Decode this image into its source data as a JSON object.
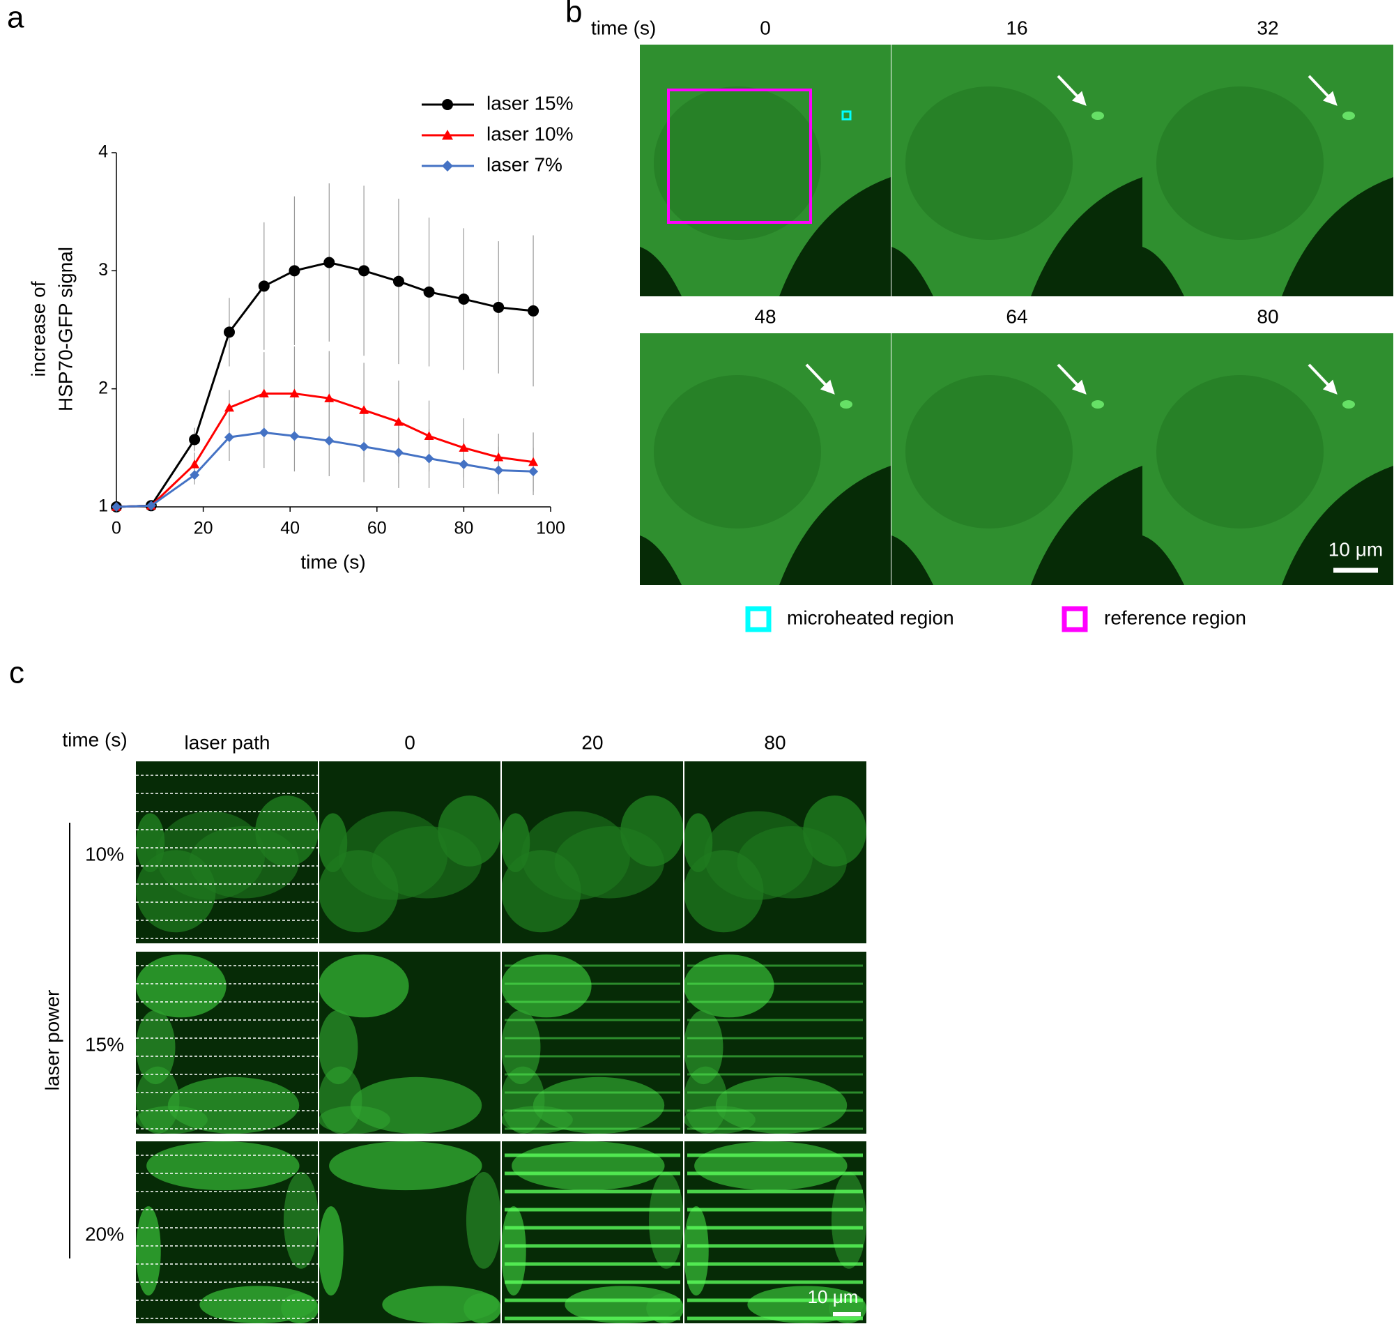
{
  "panel_labels": [
    "a",
    "b",
    "c"
  ],
  "chart_data": {
    "type": "line",
    "y_label": [
      "increase of",
      "HSP70-GFP signal"
    ],
    "x_label": "time (s)",
    "x": [
      0,
      8,
      18,
      26,
      34,
      41,
      49,
      57,
      65,
      72,
      80,
      88,
      96
    ],
    "series": [
      {
        "name": "laser 15%",
        "color": "#000000",
        "marker": "circle",
        "values": [
          1,
          1.01,
          1.57,
          2.48,
          2.87,
          3.0,
          3.07,
          3.0,
          2.91,
          2.82,
          2.76,
          2.69,
          2.66
        ],
        "errors": [
          0,
          0.01,
          0.1,
          0.29,
          0.54,
          0.63,
          0.67,
          0.72,
          0.7,
          0.63,
          0.6,
          0.56,
          0.64
        ]
      },
      {
        "name": "laser 10%",
        "color": "#ff0000",
        "marker": "triangle",
        "values": [
          1,
          1.01,
          1.36,
          1.84,
          1.96,
          1.96,
          1.92,
          1.82,
          1.72,
          1.6,
          1.5,
          1.42,
          1.38
        ],
        "errors": [
          0,
          0.01,
          0.1,
          0.15,
          0.35,
          0.4,
          0.4,
          0.4,
          0.35,
          0.3,
          0.25,
          0.2,
          0.25
        ]
      },
      {
        "name": "laser 7%",
        "color": "#4472c4",
        "marker": "diamond",
        "values": [
          1,
          1.01,
          1.27,
          1.59,
          1.63,
          1.6,
          1.56,
          1.51,
          1.46,
          1.41,
          1.36,
          1.31,
          1.3
        ],
        "errors": [
          0,
          0.01,
          0.08,
          0.2,
          0.3,
          0.3,
          0.3,
          0.3,
          0.3,
          0.25,
          0.2,
          0.2,
          0.2
        ]
      }
    ],
    "xlim": [
      0,
      100
    ],
    "xticks": [
      0,
      20,
      40,
      60,
      80,
      100
    ],
    "ylim": [
      1,
      4
    ],
    "yticks": [
      1,
      2,
      3,
      4
    ],
    "legend": "upper right"
  },
  "panel_b": {
    "time_label": "time (s)",
    "times": [
      0,
      16,
      32,
      48,
      64,
      80
    ],
    "scale_bar": "10 μm",
    "legend": [
      "microheated region",
      "reference region"
    ]
  },
  "panel_c": {
    "time_label": "time (s)",
    "columns": [
      "laser path",
      "0",
      "20",
      "80"
    ],
    "row_axis": "laser power",
    "rows": [
      "10%",
      "15%",
      "20%"
    ],
    "scale_bar": "10 μm"
  }
}
